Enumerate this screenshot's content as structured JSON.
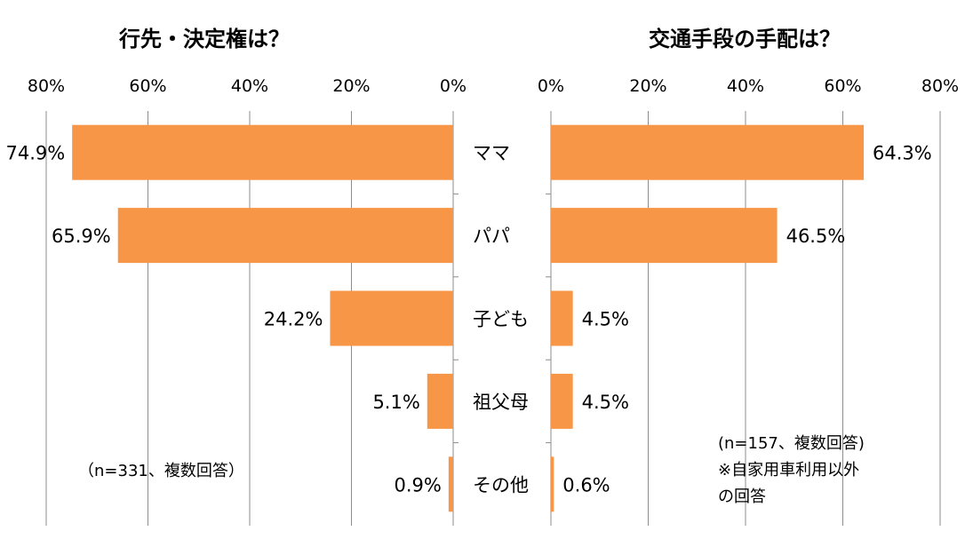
{
  "chart_data": [
    {
      "type": "bar",
      "title": "行先・決定権は？",
      "categories": [
        "ママ",
        "パパ",
        "子ども",
        "祖父母",
        "その他"
      ],
      "values": [
        74.9,
        65.9,
        24.2,
        5.1,
        0.9
      ],
      "value_labels": [
        "74.9%",
        "65.9%",
        "24.2%",
        "5.1%",
        "0.9%"
      ],
      "xlim": [
        0,
        80
      ],
      "ticks": [
        "0%",
        "20%",
        "40%",
        "60%",
        "80%"
      ],
      "orientation": "horizontal",
      "direction": "reversed",
      "note": "（n=331、複数回答）",
      "bar_color": "#F79646",
      "grid": true
    },
    {
      "type": "bar",
      "title": "交通手段の手配は？",
      "categories": [
        "ママ",
        "パパ",
        "子ども",
        "祖父母",
        "その他"
      ],
      "values": [
        64.3,
        46.5,
        4.5,
        4.5,
        0.6
      ],
      "value_labels": [
        "64.3%",
        "46.5%",
        "4.5%",
        "4.5%",
        "0.6%"
      ],
      "xlim": [
        0,
        80
      ],
      "ticks": [
        "0%",
        "20%",
        "40%",
        "60%",
        "80%"
      ],
      "orientation": "horizontal",
      "direction": "normal",
      "note": [
        "(n=157、複数回答)",
        "※自家用車利用以外",
        "の回答"
      ],
      "bar_color": "#F79646",
      "grid": true
    }
  ]
}
